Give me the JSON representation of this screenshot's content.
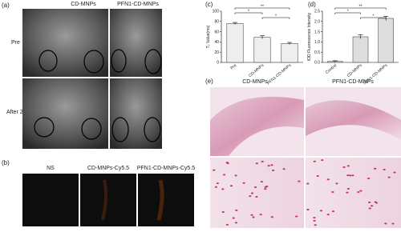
{
  "panels": {
    "a": {
      "label": "(a)",
      "columns": [
        "CD-MNPs",
        "PFN1-CD-MNPs"
      ],
      "rows": [
        "Pre",
        "After 24h"
      ]
    },
    "b": {
      "label": "(b)",
      "columns": [
        "NS",
        "CD-MNPs-Cy5.5",
        "PFN1-CD-MNPs-Cy5.5"
      ]
    },
    "e": {
      "label": "(e)",
      "columns": [
        "CD-MNPs",
        "PFN1-CD-MNPs"
      ]
    }
  },
  "chart_data": [
    {
      "type": "bar",
      "label": "(c)",
      "y_label": "T₂ Value(ms)",
      "categories": [
        "Pre",
        "CD-MNPs",
        "PFN1-CD-MNPs"
      ],
      "values": [
        76,
        49,
        37
      ],
      "errors": [
        2,
        3,
        2
      ],
      "color": "#eeeeee",
      "ylim": [
        0,
        100
      ],
      "yticks": [
        0,
        20,
        40,
        60,
        80,
        100
      ],
      "significance": [
        "*",
        "**",
        "*"
      ]
    },
    {
      "type": "bar",
      "label": "(d)",
      "y_label": "IOD Fluorescence Intensity",
      "categories": [
        "Control",
        "CD-MNPs",
        "PFN1-CD-MNPs"
      ],
      "values": [
        0.05,
        1.25,
        2.15
      ],
      "errors": [
        0.03,
        0.1,
        0.1
      ],
      "color": "#dddddd",
      "ylim": [
        0,
        2.5
      ],
      "yticks": [
        {
          "value": 0,
          "label": "0.0"
        },
        {
          "value": 0.5,
          "label": "0.5"
        },
        {
          "value": 1,
          "label": "1.0"
        },
        {
          "value": 1.5,
          "label": "1.5"
        },
        {
          "value": 2,
          "label": "2.0"
        },
        {
          "value": 2.5,
          "label": "2.5"
        }
      ],
      "significance": [
        "*",
        "**",
        "*"
      ]
    }
  ]
}
